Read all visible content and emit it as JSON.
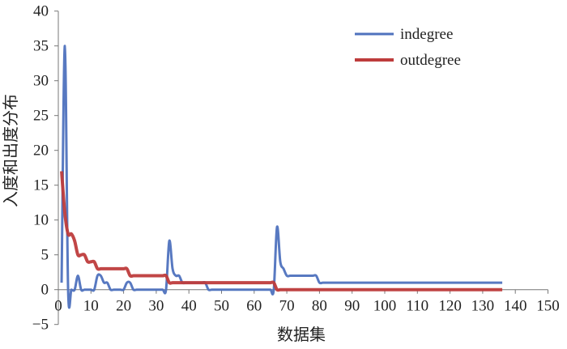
{
  "chart_data": {
    "type": "line",
    "title": "",
    "xlabel": "数据集",
    "ylabel": "入度和出度分布",
    "xlim": [
      0,
      150
    ],
    "ylim": [
      -5,
      40
    ],
    "xticks": [
      0,
      10,
      20,
      30,
      40,
      50,
      60,
      70,
      80,
      90,
      100,
      110,
      120,
      130,
      140,
      150
    ],
    "yticks": [
      -5,
      0,
      5,
      10,
      15,
      20,
      25,
      30,
      35,
      40
    ],
    "grid": false,
    "legend_position": "top-right",
    "smooth": true,
    "series": [
      {
        "name": "indegree",
        "color": "#4f72be",
        "x_range": [
          1,
          136
        ],
        "values": [
          1,
          35,
          0,
          0,
          0,
          2,
          0,
          0,
          0,
          0,
          0,
          2,
          2,
          1,
          1,
          0,
          0,
          0,
          0,
          0,
          1,
          1,
          0,
          0,
          0,
          0,
          0,
          0,
          0,
          0,
          0,
          0,
          0,
          7,
          3,
          2,
          2,
          1,
          1,
          1,
          1,
          1,
          1,
          1,
          1,
          0,
          0,
          0,
          0,
          0,
          0,
          0,
          0,
          0,
          0,
          0,
          0,
          0,
          0,
          0,
          0,
          0,
          0,
          0,
          0,
          0,
          9,
          4,
          3,
          2,
          2,
          2,
          2,
          2,
          2,
          2,
          2,
          2,
          2,
          1,
          1,
          1,
          1,
          1,
          1,
          1,
          1,
          1,
          1,
          1,
          1,
          1,
          1,
          1,
          1,
          1,
          1,
          1,
          1,
          1,
          1,
          1,
          1,
          1,
          1,
          1,
          1,
          1,
          1,
          1,
          1,
          1,
          1,
          1,
          1,
          1,
          1,
          1,
          1,
          1,
          1,
          1,
          1,
          1,
          1,
          1,
          1,
          1,
          1,
          1,
          1,
          1,
          1,
          1,
          1,
          1
        ]
      },
      {
        "name": "outdegree",
        "color": "#be3c3c",
        "x_range": [
          1,
          136
        ],
        "values": [
          17,
          11,
          8,
          8,
          7,
          5,
          5,
          5,
          4,
          4,
          4,
          3,
          3,
          3,
          3,
          3,
          3,
          3,
          3,
          3,
          3,
          2,
          2,
          2,
          2,
          2,
          2,
          2,
          2,
          2,
          2,
          2,
          2,
          1,
          1,
          1,
          1,
          1,
          1,
          1,
          1,
          1,
          1,
          1,
          1,
          1,
          1,
          1,
          1,
          1,
          1,
          1,
          1,
          1,
          1,
          1,
          1,
          1,
          1,
          1,
          1,
          1,
          1,
          1,
          1,
          1,
          0,
          0,
          0,
          0,
          0,
          0,
          0,
          0,
          0,
          0,
          0,
          0,
          0,
          0,
          0,
          0,
          0,
          0,
          0,
          0,
          0,
          0,
          0,
          0,
          0,
          0,
          0,
          0,
          0,
          0,
          0,
          0,
          0,
          0,
          0,
          0,
          0,
          0,
          0,
          0,
          0,
          0,
          0,
          0,
          0,
          0,
          0,
          0,
          0,
          0,
          0,
          0,
          0,
          0,
          0,
          0,
          0,
          0,
          0,
          0,
          0,
          0,
          0,
          0,
          0,
          0,
          0,
          0,
          0,
          0
        ]
      }
    ]
  }
}
